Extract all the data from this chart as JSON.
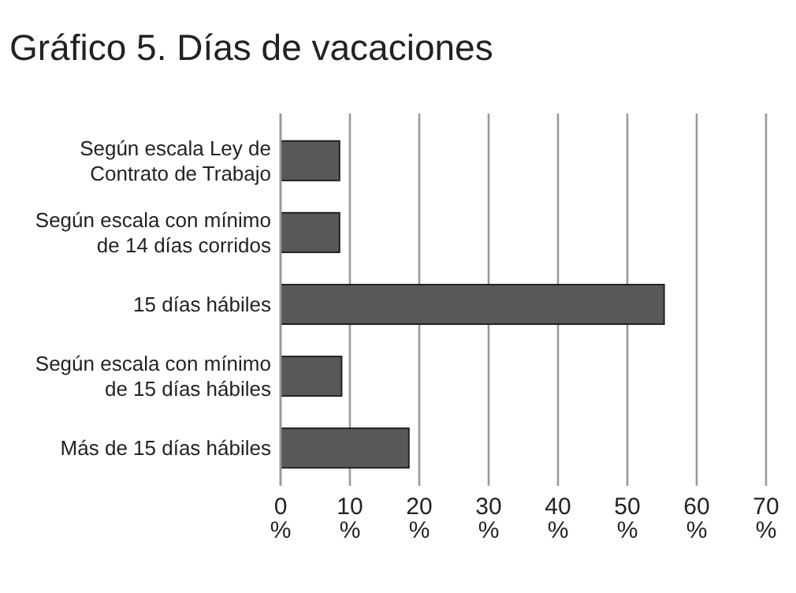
{
  "chart_data": {
    "type": "bar",
    "orientation": "horizontal",
    "title": "Gráfico 5. Días de vacaciones",
    "categories": [
      "Según escala Ley de Contrato de Trabajo",
      "Según escala con mínimo de 14 días corridos",
      "15 días hábiles",
      "Según escala con mínimo de 15 días hábiles",
      "Más de 15 días hábiles"
    ],
    "values": [
      8.5,
      8.5,
      55.3,
      8.8,
      18.5
    ],
    "color": "#58585a",
    "xlim": [
      0,
      70
    ],
    "xticks": [
      {
        "value": 0,
        "label": "0 %"
      },
      {
        "value": 10,
        "label": "10 %"
      },
      {
        "value": 20,
        "label": "20 %"
      },
      {
        "value": 30,
        "label": "30 %"
      },
      {
        "value": 40,
        "label": "40 %"
      },
      {
        "value": 50,
        "label": "50 %"
      },
      {
        "value": 60,
        "label": "60 %"
      },
      {
        "value": 70,
        "label": "70 %"
      }
    ],
    "grid": "x"
  }
}
